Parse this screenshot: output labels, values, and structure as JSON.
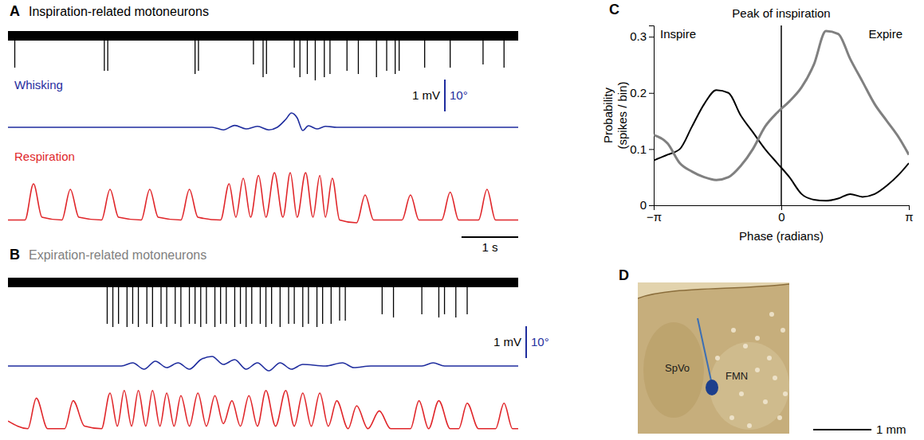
{
  "chart_data": [
    {
      "type": "trace",
      "panel": "A",
      "title": "Inspiration-related motoneurons",
      "xlim": [
        0,
        9
      ],
      "tick_labels": false,
      "spikes": {
        "color": "#000000",
        "ylim": [
          -1.5,
          0.5
        ],
        "noise_band": [
          -0.15,
          0.15
        ],
        "x": [
          0.12,
          1.7,
          1.76,
          3.3,
          3.36,
          4.33,
          4.5,
          4.56,
          5.05,
          5.15,
          5.28,
          5.42,
          5.58,
          5.68,
          5.98,
          6.18,
          6.5,
          6.68,
          6.83,
          6.9,
          7.35,
          7.8,
          8.38,
          8.75
        ],
        "values": [
          -1.0,
          -1.1,
          -1.1,
          -1.2,
          -1.1,
          -0.9,
          -1.3,
          -1.2,
          -1.0,
          -1.3,
          -1.2,
          -1.4,
          -1.3,
          -1.2,
          -1.1,
          -1.2,
          -1.3,
          -1.1,
          -1.2,
          -1.1,
          -1.0,
          -1.0,
          -0.9,
          -1.0
        ]
      },
      "series": [
        {
          "name": "Whisking",
          "color": "#1f2d9e",
          "ylim": [
            -10,
            10
          ],
          "x": [
            0,
            3.6,
            3.8,
            4.0,
            4.2,
            4.4,
            4.6,
            4.75,
            4.9,
            5.0,
            5.1,
            5.2,
            5.3,
            5.45,
            5.6,
            5.8,
            9
          ],
          "values": [
            0,
            0,
            -0.8,
            0.6,
            -0.5,
            0.3,
            -0.8,
            0,
            2.5,
            4.5,
            3,
            -1,
            0.5,
            -0.5,
            0.3,
            0,
            0
          ]
        },
        {
          "name": "Respiration",
          "color": "#e0262a",
          "ylim": [
            0,
            1
          ],
          "x": [
            0,
            0.3,
            0.45,
            0.6,
            0.95,
            1.1,
            1.25,
            1.65,
            1.8,
            1.95,
            2.35,
            2.5,
            2.65,
            3.05,
            3.2,
            3.35,
            3.75,
            3.9,
            4.02,
            4.15,
            4.28,
            4.42,
            4.55,
            4.7,
            4.85,
            4.98,
            5.1,
            5.25,
            5.38,
            5.5,
            5.6,
            5.72,
            5.85,
            6.15,
            6.3,
            6.45,
            6.95,
            7.1,
            7.25,
            7.65,
            7.8,
            7.95,
            8.3,
            8.45,
            8.6,
            9
          ],
          "values": [
            0.05,
            0.05,
            0.7,
            0.1,
            0.05,
            0.6,
            0.1,
            0.05,
            0.6,
            0.1,
            0.05,
            0.6,
            0.1,
            0.05,
            0.6,
            0.1,
            0.05,
            0.7,
            0.1,
            0.8,
            0.1,
            0.85,
            0.1,
            0.9,
            0.1,
            0.9,
            0.1,
            0.9,
            0.1,
            0.85,
            0.1,
            0.8,
            0.05,
            0,
            0.5,
            0.05,
            0.05,
            0.5,
            0.05,
            0.05,
            0.55,
            0.05,
            0.05,
            0.6,
            0.05,
            0.05
          ]
        }
      ],
      "scale_bars": [
        {
          "value": 1,
          "label": "1 mV",
          "axis": "spikes",
          "color": "#000000"
        },
        {
          "value": 10,
          "label": "10°",
          "axis": "series.0",
          "color": "#1f2d9e"
        },
        {
          "value": 1,
          "label": "1 s",
          "axis": "x",
          "color": "#000000"
        }
      ]
    },
    {
      "type": "trace",
      "panel": "B",
      "title": "Expiration-related motoneurons",
      "xlim": [
        0,
        9
      ],
      "tick_labels": false,
      "spikes": {
        "color": "#000000",
        "ylim": [
          -1.5,
          0.5
        ],
        "noise_band": [
          -0.15,
          0.15
        ],
        "x": [
          1.75,
          1.85,
          1.95,
          2.1,
          2.2,
          2.3,
          2.45,
          2.55,
          2.7,
          2.8,
          2.95,
          3.05,
          3.2,
          3.3,
          3.4,
          3.5,
          3.65,
          3.75,
          3.85,
          4.0,
          4.1,
          4.2,
          4.3,
          4.45,
          4.55,
          4.65,
          4.8,
          4.95,
          5.05,
          5.2,
          5.3,
          5.45,
          5.55,
          5.7,
          5.85,
          5.95,
          6.6,
          6.8,
          7.3,
          7.6,
          7.7,
          7.9,
          8.1
        ],
        "values": [
          -1.3,
          -1.4,
          -1.3,
          -1.4,
          -1.3,
          -1.4,
          -1.3,
          -1.4,
          -1.3,
          -1.4,
          -1.3,
          -1.4,
          -1.3,
          -1.3,
          -1.4,
          -1.3,
          -1.4,
          -1.3,
          -1.3,
          -1.4,
          -1.3,
          -1.4,
          -1.3,
          -1.3,
          -1.4,
          -1.3,
          -1.4,
          -1.3,
          -1.3,
          -1.4,
          -1.3,
          -1.4,
          -1.3,
          -1.3,
          -1.2,
          -1.2,
          -1.0,
          -1.1,
          -1.0,
          -1.1,
          -1.0,
          -1.1,
          -1.0
        ]
      },
      "series": [
        {
          "color": "#1f2d9e",
          "ylim": [
            -10,
            10
          ],
          "x": [
            0,
            2.0,
            2.2,
            2.4,
            2.6,
            2.8,
            3.0,
            3.2,
            3.4,
            3.6,
            3.8,
            4.0,
            4.2,
            4.4,
            4.6,
            4.8,
            5.0,
            5.2,
            5.6,
            5.9,
            6.1,
            6.4,
            7.3,
            7.5,
            7.7,
            9
          ],
          "values": [
            0,
            0,
            1,
            -1,
            1.5,
            -0.5,
            1,
            -1,
            2,
            3,
            0.5,
            2,
            -1,
            1,
            -1.5,
            1,
            -1,
            0.5,
            0,
            1,
            -0.5,
            0,
            0,
            1,
            0,
            0
          ]
        },
        {
          "color": "#e0262a",
          "ylim": [
            0,
            1
          ],
          "x": [
            0,
            0.35,
            0.5,
            0.7,
            1,
            1.15,
            1.35,
            1.65,
            1.8,
            1.93,
            2.05,
            2.18,
            2.3,
            2.43,
            2.55,
            2.68,
            2.8,
            2.93,
            3.05,
            3.2,
            3.35,
            3.5,
            3.65,
            3.8,
            3.95,
            4.1,
            4.25,
            4.4,
            4.55,
            4.72,
            4.9,
            5.05,
            5.2,
            5.35,
            5.5,
            5.65,
            5.8,
            6.0,
            6.15,
            6.35,
            6.55,
            6.75,
            7.1,
            7.25,
            7.42,
            7.6,
            7.8,
            7.95,
            8.1,
            8.3,
            8.6,
            8.75,
            8.9,
            9
          ],
          "values": [
            0.2,
            0.05,
            0.65,
            0.05,
            0.05,
            0.6,
            0.1,
            0.05,
            0.75,
            0.1,
            0.8,
            0.1,
            0.8,
            0.1,
            0.8,
            0.1,
            0.75,
            0.1,
            0.7,
            0.1,
            0.75,
            0.1,
            0.7,
            0.15,
            0.6,
            0.1,
            0.7,
            0.1,
            0.8,
            0.1,
            0.8,
            0.1,
            0.75,
            0.1,
            0.75,
            0.1,
            0.6,
            0.05,
            0.5,
            0.05,
            0.4,
            0.05,
            0.05,
            0.6,
            0.05,
            0.6,
            0.05,
            0.05,
            0.55,
            0.05,
            0.05,
            0.55,
            0.05,
            0.05
          ]
        }
      ],
      "scale_bars": [
        {
          "value": 1,
          "label": "1 mV",
          "axis": "spikes",
          "color": "#000000"
        },
        {
          "value": 10,
          "label": "10°",
          "axis": "series.0",
          "color": "#1f2d9e"
        }
      ]
    },
    {
      "type": "line",
      "panel": "C",
      "xlim": [
        -3.1416,
        3.1416
      ],
      "ylim": [
        0,
        0.32
      ],
      "xticks": [
        {
          "value": -3.1416,
          "label": "−π"
        },
        0,
        {
          "value": 3.1416,
          "label": "π"
        }
      ],
      "yticks": [
        0,
        0.1,
        0.2,
        0.3
      ],
      "x_label": "Phase (radians)",
      "y_label": "Probability (spikes / bin)",
      "annotations": [
        {
          "text": "Peak of inspiration",
          "x": 0
        },
        {
          "text": "Inspire"
        },
        {
          "text": "Expire"
        }
      ],
      "x": [
        -3.1416,
        -2.8,
        -2.5,
        -2.2,
        -1.9,
        -1.6,
        -1.3,
        -1.0,
        -0.7,
        -0.4,
        -0.1,
        0.2,
        0.5,
        0.8,
        1.1,
        1.4,
        1.7,
        2.0,
        2.3,
        2.6,
        2.9,
        3.1416
      ],
      "series": [
        {
          "color": "#000000",
          "values": [
            0.08,
            0.09,
            0.1,
            0.14,
            0.18,
            0.205,
            0.2,
            0.16,
            0.13,
            0.1,
            0.075,
            0.05,
            0.02,
            0.01,
            0.008,
            0.012,
            0.02,
            0.015,
            0.02,
            0.035,
            0.055,
            0.075
          ]
        },
        {
          "color": "#808080",
          "values": [
            0.125,
            0.11,
            0.075,
            0.06,
            0.05,
            0.045,
            0.05,
            0.07,
            0.1,
            0.14,
            0.165,
            0.185,
            0.21,
            0.25,
            0.31,
            0.305,
            0.26,
            0.22,
            0.18,
            0.15,
            0.12,
            0.09
          ]
        }
      ]
    },
    {
      "type": "image",
      "panel": "D",
      "xlim": [
        0,
        2.6
      ],
      "labels": [
        "SpVo",
        "FMN"
      ],
      "scale_bar": {
        "value": 1,
        "label": "1 mm"
      }
    }
  ]
}
